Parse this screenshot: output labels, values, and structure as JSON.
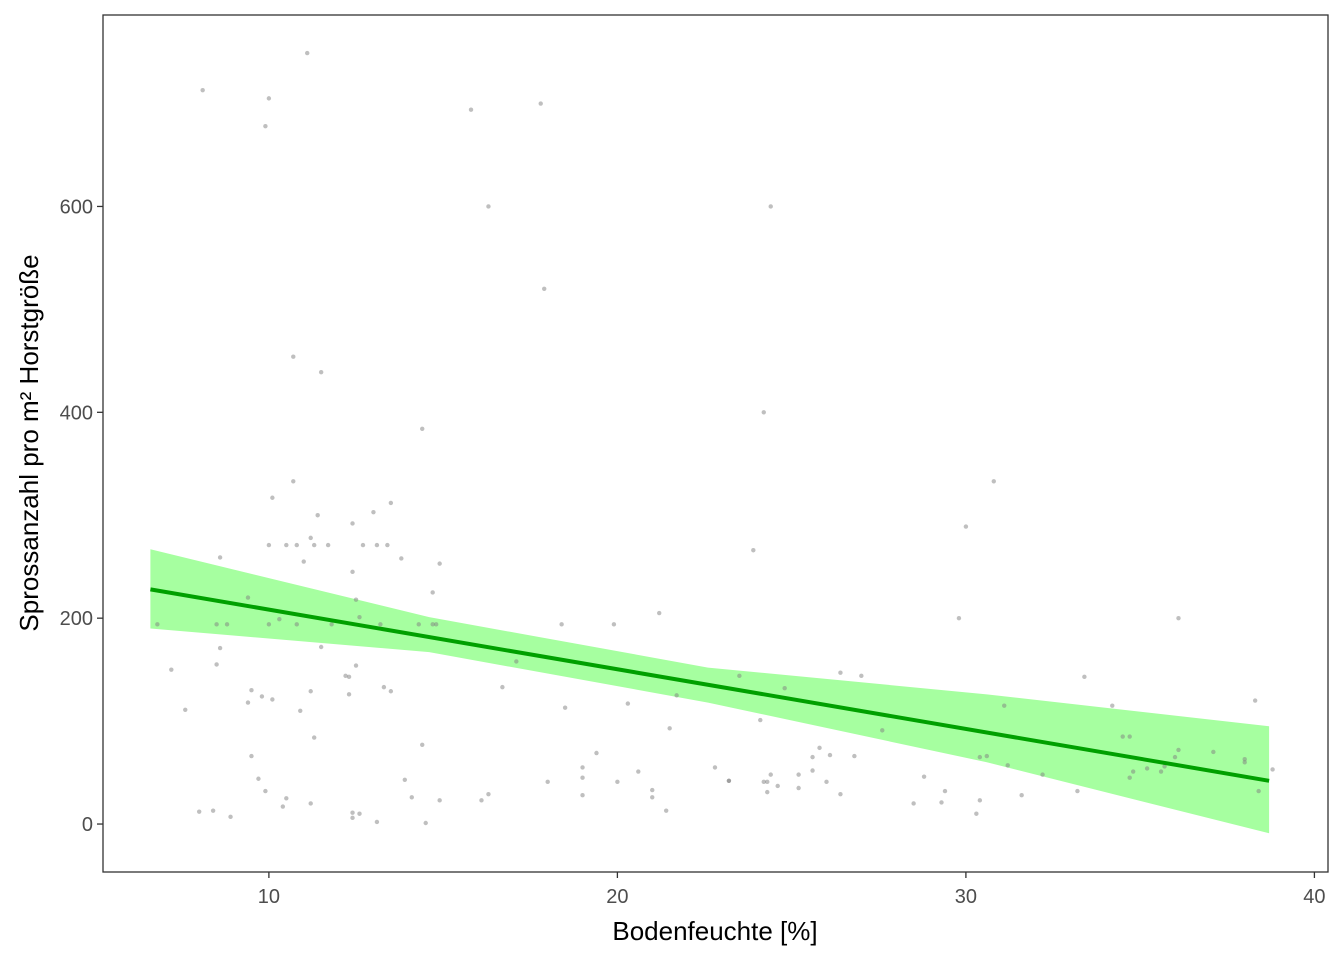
{
  "chart_data": {
    "type": "scatter",
    "xlabel": "Bodenfeuchte [%]",
    "ylabel": "Sprossanzahl pro m² Horstgröße",
    "xlim": [
      5.24,
      40.39
    ],
    "ylim": [
      -46.6,
      786
    ],
    "xticks": [
      10,
      20,
      30,
      40
    ],
    "yticks": [
      0,
      200,
      400,
      600
    ],
    "point_color": "#808080",
    "x": [
      6.8,
      7.2,
      7.6,
      8.0,
      8.1,
      8.4,
      8.5,
      8.5,
      8.6,
      8.6,
      8.8,
      8.9,
      9.4,
      9.4,
      9.5,
      9.5,
      9.7,
      9.8,
      9.9,
      9.9,
      10.0,
      10.0,
      10.0,
      10.1,
      10.1,
      10.3,
      10.4,
      10.5,
      10.5,
      10.7,
      10.7,
      10.8,
      10.8,
      10.9,
      11.0,
      11.1,
      11.2,
      11.2,
      11.2,
      11.3,
      11.3,
      11.4,
      11.5,
      11.5,
      11.7,
      11.8,
      12.2,
      12.3,
      12.3,
      12.4,
      12.4,
      12.4,
      12.4,
      12.5,
      12.5,
      12.6,
      12.6,
      12.7,
      13.0,
      13.1,
      13.1,
      13.2,
      13.3,
      13.4,
      13.5,
      13.5,
      13.8,
      13.9,
      14.1,
      14.3,
      14.4,
      14.4,
      14.5,
      14.7,
      14.7,
      14.8,
      14.9,
      14.9,
      15.8,
      16.1,
      16.3,
      16.3,
      16.7,
      17.1,
      17.8,
      17.9,
      18.0,
      18.4,
      18.5,
      19.0,
      19.0,
      19.0,
      19.4,
      19.9,
      20.0,
      20.3,
      20.6,
      21.0,
      21.0,
      21.2,
      21.4,
      21.5,
      21.7,
      22.8,
      23.2,
      23.2,
      23.5,
      23.9,
      24.1,
      24.2,
      24.2,
      24.3,
      24.3,
      24.4,
      24.4,
      24.6,
      24.8,
      25.2,
      25.2,
      25.6,
      25.6,
      25.8,
      26.0,
      26.1,
      26.4,
      26.4,
      26.8,
      27.0,
      27.6,
      28.5,
      28.8,
      29.3,
      29.4,
      29.8,
      30.0,
      30.3,
      30.4,
      30.4,
      30.6,
      30.8,
      31.1,
      31.2,
      31.6,
      32.2,
      33.2,
      33.4,
      34.2,
      34.5,
      34.7,
      34.7,
      34.8,
      35.2,
      35.6,
      35.7,
      36.0,
      36.1,
      36.1,
      37.1,
      38.0,
      38.0,
      38.3,
      38.4,
      38.8
    ],
    "values": [
      194,
      150,
      111,
      12,
      713,
      13,
      155,
      194,
      171,
      259,
      194,
      7,
      220,
      118,
      130,
      66,
      44,
      124,
      32,
      678,
      705,
      194,
      271,
      317,
      121,
      199,
      17,
      271,
      25,
      454,
      333,
      271,
      194,
      110,
      255,
      749,
      20,
      278,
      129,
      271,
      84,
      300,
      439,
      172,
      271,
      194,
      144,
      126,
      143,
      292,
      245,
      11,
      6,
      218,
      154,
      201,
      10,
      271,
      303,
      271,
      2,
      194,
      133,
      271,
      129,
      312,
      258,
      43,
      26,
      194,
      384,
      77,
      1,
      225,
      194,
      194,
      253,
      23,
      694,
      23,
      29,
      600,
      133,
      158,
      700,
      520,
      41,
      194,
      113,
      55,
      28,
      45,
      69,
      194,
      41,
      117,
      51,
      33,
      26,
      205,
      13,
      93,
      125,
      55,
      42,
      42,
      144,
      266,
      101,
      400,
      41,
      41,
      31,
      600,
      48,
      37,
      132,
      35,
      48,
      52,
      65,
      74,
      41,
      67,
      29,
      147,
      66,
      144,
      91,
      20,
      46,
      21,
      32,
      200,
      289,
      10,
      65,
      23,
      66,
      333,
      115,
      57,
      28,
      48,
      32,
      143,
      115,
      85,
      45,
      85,
      51,
      54,
      51,
      56,
      65,
      72,
      200,
      70,
      60,
      63,
      120,
      32,
      53
    ],
    "fit": {
      "x": [
        6.6,
        38.7
      ],
      "values": [
        228,
        42
      ],
      "color": "#00a000"
    },
    "band": {
      "x": [
        6.6,
        14.6,
        22.6,
        30.6,
        38.7
      ],
      "lower": [
        190,
        167,
        118,
        60,
        -9
      ],
      "upper": [
        267,
        201,
        152,
        126,
        95
      ],
      "color": "#a6ffa0"
    }
  }
}
